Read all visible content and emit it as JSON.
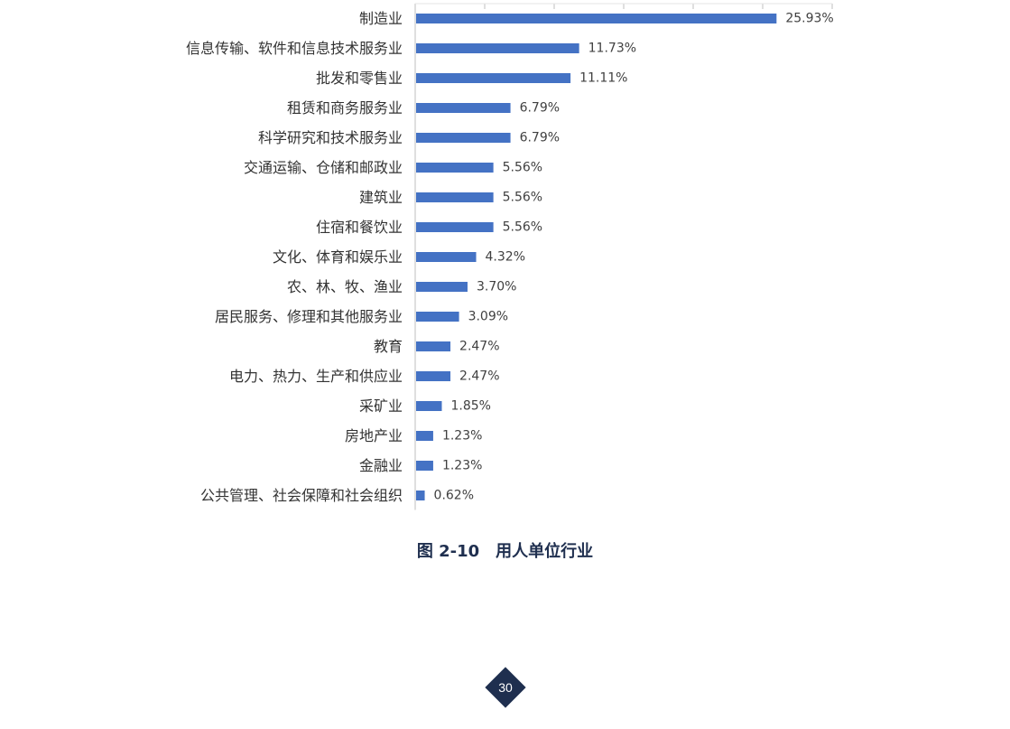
{
  "chart_data": {
    "type": "bar",
    "orientation": "horizontal",
    "categories": [
      "制造业",
      "信息传输、软件和信息技术服务业",
      "批发和零售业",
      "租赁和商务服务业",
      "科学研究和技术服务业",
      "交通运输、仓储和邮政业",
      "建筑业",
      "住宿和餐饮业",
      "文化、体育和娱乐业",
      "农、林、牧、渔业",
      "居民服务、修理和其他服务业",
      "教育",
      "电力、热力、生产和供应业",
      "采矿业",
      "房地产业",
      "金融业",
      "公共管理、社会保障和社会组织"
    ],
    "values": [
      25.93,
      11.73,
      11.11,
      6.79,
      6.79,
      5.56,
      5.56,
      5.56,
      4.32,
      3.7,
      3.09,
      2.47,
      2.47,
      1.85,
      1.23,
      1.23,
      0.62
    ],
    "value_labels": [
      "25.93%",
      "11.73%",
      "11.11%",
      "6.79%",
      "6.79%",
      "5.56%",
      "5.56%",
      "5.56%",
      "4.32%",
      "3.70%",
      "3.09%",
      "2.47%",
      "2.47%",
      "1.85%",
      "1.23%",
      "1.23%",
      "0.62%"
    ],
    "xlim": [
      0,
      30
    ],
    "bar_color": "#4472c4",
    "grid": false,
    "legend": "none"
  },
  "caption": "图 2-10　用人单位行业",
  "page_number": "30",
  "colors": {
    "caption": "#1f2f4f",
    "badge": "#1f2f4f"
  }
}
